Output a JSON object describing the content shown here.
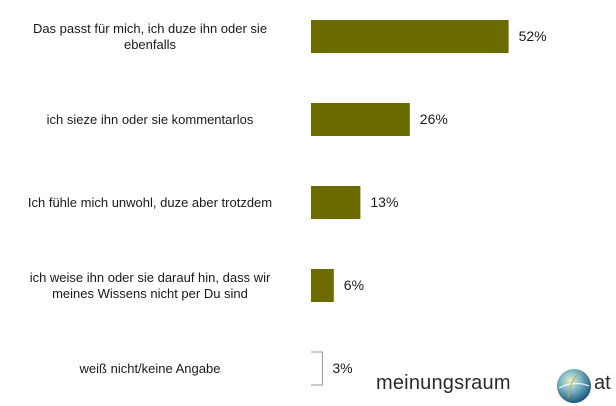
{
  "chart_data": {
    "type": "bar",
    "orientation": "horizontal",
    "categories": [
      "Das passt für mich, ich duze ihn oder sie ebenfalls",
      "ich sieze ihn oder sie kommentarlos",
      "Ich fühle mich unwohl, duze aber trotzdem",
      "ich weise ihn oder sie darauf hin, dass wir meines Wissens nicht per Du sind",
      "weiß nicht/keine Angabe"
    ],
    "category_lines": [
      [
        "Das passt für mich, ich duze ihn oder sie",
        "ebenfalls"
      ],
      [
        "ich sieze ihn oder sie kommentarlos"
      ],
      [
        "Ich fühle mich unwohl, duze aber trotzdem"
      ],
      [
        "ich weise ihn oder sie darauf hin, dass wir",
        "meines Wissens nicht per Du sind"
      ],
      [
        "weiß nicht/keine Angabe"
      ]
    ],
    "values": [
      52,
      26,
      13,
      6,
      3
    ],
    "value_labels": [
      "52%",
      "26%",
      "13%",
      "6%",
      "3%"
    ],
    "bar_color": "#6b6b00",
    "xlim": [
      0,
      60
    ]
  },
  "logo": {
    "text": "meinungsraum",
    "suffix": "at"
  }
}
